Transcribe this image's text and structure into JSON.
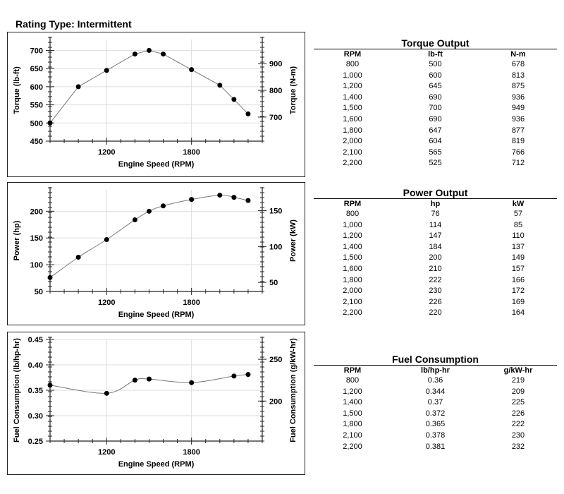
{
  "rating_type": "Rating Type: Intermittent",
  "chart_data": [
    {
      "type": "line",
      "xlabel": "Engine Speed (RPM)",
      "ylabel": "Torque (lb-ft)",
      "y2label": "Torque (N-m)",
      "x": [
        800,
        1000,
        1200,
        1400,
        1500,
        1600,
        1800,
        2000,
        2100,
        2200
      ],
      "y": [
        500,
        600,
        645,
        690,
        700,
        690,
        647,
        604,
        565,
        525
      ],
      "xlim": [
        800,
        2300
      ],
      "ylim": [
        450,
        730
      ],
      "xticks": [
        1200,
        1800
      ],
      "yticks": [
        450,
        500,
        550,
        600,
        650,
        700
      ],
      "y2_factor": 1.3558,
      "y2ticks": [
        700,
        800,
        900
      ],
      "grid": true,
      "smooth": false
    },
    {
      "type": "line",
      "xlabel": "Engine Speed (RPM)",
      "ylabel": "Power (hp)",
      "y2label": "Power (kW)",
      "x": [
        800,
        1000,
        1200,
        1400,
        1500,
        1600,
        1800,
        2000,
        2100,
        2200
      ],
      "y": [
        76,
        114,
        147,
        184,
        200,
        210,
        222,
        230,
        226,
        220
      ],
      "xlim": [
        800,
        2300
      ],
      "ylim": [
        50,
        240
      ],
      "xticks": [
        1200,
        1800
      ],
      "yticks": [
        50,
        100,
        150,
        200
      ],
      "y2_factor": 0.7457,
      "y2ticks": [
        50,
        100,
        150
      ],
      "grid": true,
      "smooth": true
    },
    {
      "type": "line",
      "xlabel": "Engine Speed (RPM)",
      "ylabel": "Fuel Consumption (lb/hp-hr)",
      "y2label": "Fuel Consumption (g/kW-hr)",
      "x": [
        800,
        1200,
        1400,
        1500,
        1800,
        2100,
        2200
      ],
      "y": [
        0.36,
        0.344,
        0.37,
        0.372,
        0.365,
        0.378,
        0.381
      ],
      "xlim": [
        800,
        2300
      ],
      "ylim": [
        0.25,
        0.45
      ],
      "xticks": [
        1200,
        1800
      ],
      "yticks": [
        0.25,
        0.3,
        0.35,
        0.4,
        0.45
      ],
      "y2_factor": 608.3,
      "y2ticks": [
        200,
        250
      ],
      "grid": true,
      "smooth": true
    }
  ],
  "tables": [
    {
      "title": "Torque Output",
      "headers": [
        "RPM",
        "lb-ft",
        "N-m"
      ],
      "rows": [
        [
          "800",
          "500",
          "678"
        ],
        [
          "1,000",
          "600",
          "813"
        ],
        [
          "1,200",
          "645",
          "875"
        ],
        [
          "1,400",
          "690",
          "936"
        ],
        [
          "1,500",
          "700",
          "949"
        ],
        [
          "1,600",
          "690",
          "936"
        ],
        [
          "1,800",
          "647",
          "877"
        ],
        [
          "2,000",
          "604",
          "819"
        ],
        [
          "2,100",
          "565",
          "766"
        ],
        [
          "2,200",
          "525",
          "712"
        ]
      ]
    },
    {
      "title": "Power Output",
      "headers": [
        "RPM",
        "hp",
        "kW"
      ],
      "rows": [
        [
          "800",
          "76",
          "57"
        ],
        [
          "1,000",
          "114",
          "85"
        ],
        [
          "1,200",
          "147",
          "110"
        ],
        [
          "1,400",
          "184",
          "137"
        ],
        [
          "1,500",
          "200",
          "149"
        ],
        [
          "1,600",
          "210",
          "157"
        ],
        [
          "1,800",
          "222",
          "166"
        ],
        [
          "2,000",
          "230",
          "172"
        ],
        [
          "2,100",
          "226",
          "169"
        ],
        [
          "2,200",
          "220",
          "164"
        ]
      ]
    },
    {
      "title": "Fuel Consumption",
      "headers": [
        "RPM",
        "lb/hp-hr",
        "g/kW-hr"
      ],
      "rows": [
        [
          "800",
          "0.36",
          "219"
        ],
        [
          "1,200",
          "0.344",
          "209"
        ],
        [
          "1,400",
          "0.37",
          "225"
        ],
        [
          "1,500",
          "0.372",
          "226"
        ],
        [
          "1,800",
          "0.365",
          "222"
        ],
        [
          "2,100",
          "0.378",
          "230"
        ],
        [
          "2,200",
          "0.381",
          "232"
        ]
      ]
    }
  ]
}
